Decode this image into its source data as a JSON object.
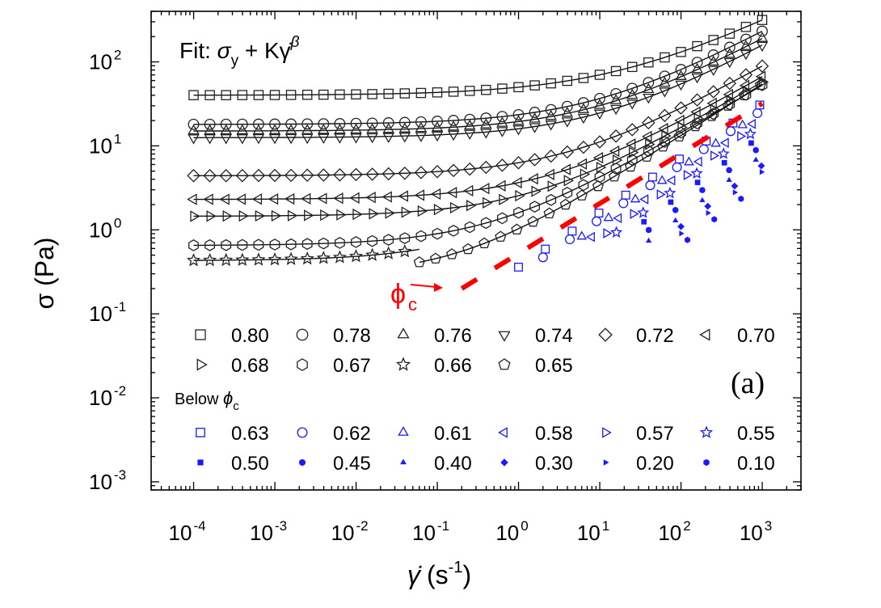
{
  "chart_data": {
    "type": "scatter",
    "x_scale": "log",
    "y_scale": "log",
    "xlim": [
      3e-05,
      3000
    ],
    "ylim": [
      0.0008,
      400
    ],
    "xlabel": {
      "main": "γ̇",
      "unit_open": "(s",
      "unit_sup": "-1",
      "unit_close": ")"
    },
    "ylabel": "σ (Pa)",
    "x_ticks": [
      {
        "base": "10",
        "exp": "-4",
        "value": 0.0001
      },
      {
        "base": "10",
        "exp": "-3",
        "value": 0.001
      },
      {
        "base": "10",
        "exp": "-2",
        "value": 0.01
      },
      {
        "base": "10",
        "exp": "-1",
        "value": 0.1
      },
      {
        "base": "10",
        "exp": "0",
        "value": 1
      },
      {
        "base": "10",
        "exp": "1",
        "value": 10
      },
      {
        "base": "10",
        "exp": "2",
        "value": 100
      },
      {
        "base": "10",
        "exp": "3",
        "value": 1000
      }
    ],
    "y_ticks": [
      {
        "base": "10",
        "exp": "2",
        "value": 100
      },
      {
        "base": "10",
        "exp": "1",
        "value": 10
      },
      {
        "base": "10",
        "exp": "0",
        "value": 1
      },
      {
        "base": "10",
        "exp": "-1",
        "value": 0.1
      },
      {
        "base": "10",
        "exp": "-2",
        "value": 0.01
      },
      {
        "base": "10",
        "exp": "-3",
        "value": 0.001
      }
    ],
    "fit_label": {
      "prefix": "Fit: ",
      "sigma": "σ",
      "sub": "y",
      "middle": " + Kγ̇",
      "sup": "β"
    },
    "panel_label": "(a)",
    "phi_c": {
      "symbol": "ϕ",
      "sub": "c",
      "line_start": [
        0.2,
        0.2
      ],
      "line_end": [
        1000,
        32
      ]
    },
    "legend_header": {
      "text": "Below ",
      "symbol": "ϕ",
      "sub": "c"
    },
    "colors": {
      "above": "#222222",
      "below": "#1a1aff",
      "phi_line": "#ff0000",
      "fit": "#111111"
    },
    "series": [
      {
        "name": "0.80",
        "group": "above",
        "marker": "square",
        "sy": 40,
        "K": 10,
        "beta": 0.48,
        "x_range": [
          0.0001,
          1000
        ],
        "fit": true
      },
      {
        "name": "0.78",
        "group": "above",
        "marker": "circle",
        "sy": 18,
        "K": 5.5,
        "beta": 0.53,
        "x_range": [
          0.0001,
          1000
        ],
        "fit": true
      },
      {
        "name": "0.76",
        "group": "above",
        "marker": "triangle-up",
        "sy": 15,
        "K": 4.5,
        "beta": 0.53,
        "x_range": [
          0.0001,
          1000
        ],
        "fit": true
      },
      {
        "name": "0.74",
        "group": "above",
        "marker": "triangle-down",
        "sy": 12.5,
        "K": 3.5,
        "beta": 0.54,
        "x_range": [
          0.0001,
          1000
        ],
        "fit": true
      },
      {
        "name": "0.72",
        "group": "above",
        "marker": "diamond",
        "sy": 4.4,
        "K": 1.9,
        "beta": 0.55,
        "x_range": [
          0.0001,
          1000
        ],
        "fit": true
      },
      {
        "name": "0.70",
        "group": "above",
        "marker": "triangle-left",
        "sy": 2.3,
        "K": 1.35,
        "beta": 0.56,
        "x_range": [
          0.0001,
          1000
        ],
        "fit": true
      },
      {
        "name": "0.68",
        "group": "above",
        "marker": "triangle-right",
        "sy": 1.45,
        "K": 1.1,
        "beta": 0.57,
        "x_range": [
          0.0001,
          1000
        ],
        "fit": true
      },
      {
        "name": "0.67",
        "group": "above",
        "marker": "hexagon",
        "sy": 0.65,
        "K": 0.95,
        "beta": 0.58,
        "x_range": [
          0.0001,
          1000
        ],
        "fit": true
      },
      {
        "name": "0.66",
        "group": "above",
        "marker": "star",
        "sy": 0.43,
        "K": 0.85,
        "beta": 0.6,
        "x_range": [
          0.0001,
          0.06
        ],
        "fit": true
      },
      {
        "name": "0.65",
        "group": "above",
        "marker": "pentagon",
        "sy": 0.28,
        "K": 0.75,
        "beta": 0.62,
        "x_range": [
          0.06,
          1000
        ],
        "fit": true
      },
      {
        "name": "0.63",
        "group": "below",
        "marker": "square",
        "sy": 0,
        "K": 0.36,
        "beta": 0.65,
        "x_range": [
          1,
          1000
        ],
        "fit": false
      },
      {
        "name": "0.62",
        "group": "below",
        "marker": "circle",
        "sy": 0,
        "K": 0.3,
        "beta": 0.65,
        "x_range": [
          2,
          1000
        ],
        "fit": false
      },
      {
        "name": "0.61",
        "group": "below",
        "marker": "triangle-up",
        "sy": 0,
        "K": 0.25,
        "beta": 0.67,
        "x_range": [
          6,
          1000
        ],
        "fit": false
      },
      {
        "name": "0.58",
        "group": "below",
        "marker": "triangle-left",
        "sy": 0,
        "K": 0.2,
        "beta": 0.68,
        "x_range": [
          8,
          1000
        ],
        "fit": false
      },
      {
        "name": "0.57",
        "group": "below",
        "marker": "triangle-right",
        "sy": 0,
        "K": 0.16,
        "beta": 0.7,
        "x_range": [
          12,
          1000
        ],
        "fit": false
      },
      {
        "name": "0.55",
        "group": "below",
        "marker": "star",
        "sy": 0,
        "K": 0.13,
        "beta": 0.71,
        "x_range": [
          16,
          1000
        ],
        "fit": false
      },
      {
        "name": "0.50",
        "group": "below",
        "marker": "square-filled",
        "sy": 0,
        "K": 0.1,
        "beta": 0.71,
        "x_range": [
          35,
          1000
        ],
        "fit": false
      },
      {
        "name": "0.45",
        "group": "below",
        "marker": "circle-filled",
        "sy": 0,
        "K": 0.07,
        "beta": 0.72,
        "x_range": [
          40,
          1000
        ],
        "fit": false
      },
      {
        "name": "0.40",
        "group": "below",
        "marker": "triangle-filled",
        "sy": 0,
        "K": 0.05,
        "beta": 0.73,
        "x_range": [
          40,
          1000
        ],
        "fit": false
      },
      {
        "name": "0.30",
        "group": "below",
        "marker": "diamond-filled",
        "sy": 0,
        "K": 0.038,
        "beta": 0.73,
        "x_range": [
          100,
          1000
        ],
        "fit": false
      },
      {
        "name": "0.20",
        "group": "below",
        "marker": "triangle-right-filled",
        "sy": 0,
        "K": 0.03,
        "beta": 0.74,
        "x_range": [
          100,
          1000
        ],
        "fit": false
      },
      {
        "name": "0.10",
        "group": "below",
        "marker": "hexagon-filled",
        "sy": 0,
        "K": 0.022,
        "beta": 0.74,
        "x_range": [
          120,
          1000
        ],
        "fit": false
      }
    ]
  }
}
